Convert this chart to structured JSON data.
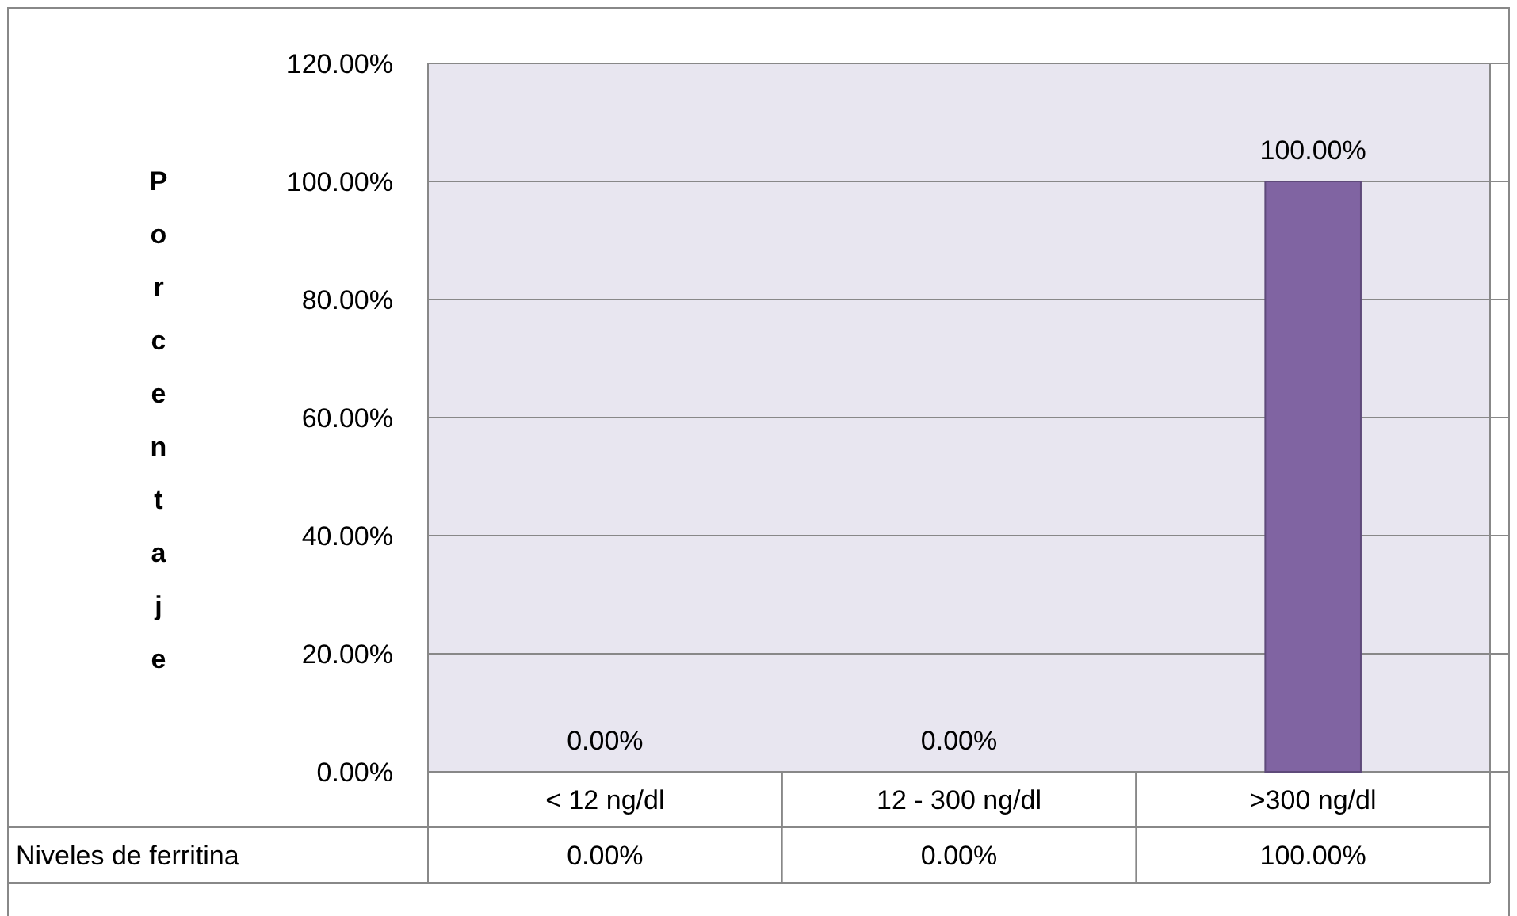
{
  "chart_data": {
    "type": "bar",
    "ylabel": "Porcentaje",
    "categories": [
      "< 12 ng/dl",
      "12 - 300 ng/dl",
      ">300 ng/dl"
    ],
    "series": [
      {
        "name": "Niveles de ferritina",
        "color": "#8064a2",
        "values": [
          0,
          0,
          100
        ],
        "value_labels": [
          "0.00%",
          "0.00%",
          "100.00%"
        ]
      }
    ],
    "ylim": [
      0,
      120
    ],
    "yticks": [
      {
        "value": 0,
        "label": "0.00%"
      },
      {
        "value": 20,
        "label": "20.00%"
      },
      {
        "value": 40,
        "label": "40.00%"
      },
      {
        "value": 60,
        "label": "60.00%"
      },
      {
        "value": 80,
        "label": "80.00%"
      },
      {
        "value": 100,
        "label": "100.00%"
      },
      {
        "value": 120,
        "label": "120.00%"
      }
    ],
    "grid": "y"
  }
}
